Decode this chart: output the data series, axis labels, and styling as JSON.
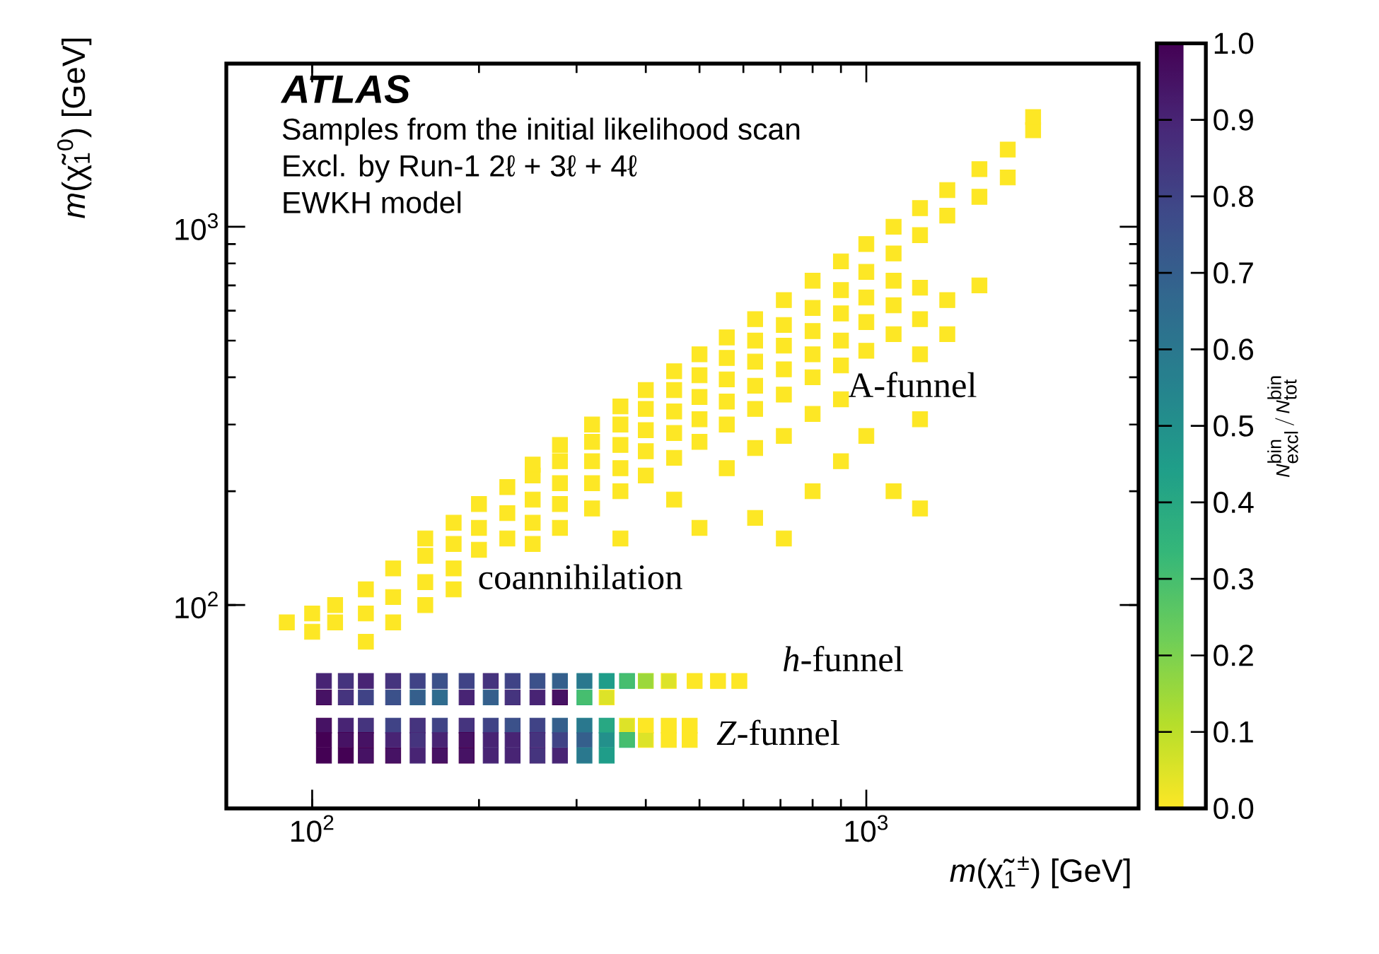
{
  "chart_data": {
    "type": "scatter",
    "xlabel": "*m*(χ̃$_{1}$$^{±}$) [GeV]",
    "ylabel": "*m*(χ̃$_{1}$$^{0}$) [GeV]",
    "clabel": "\\textit{N}^{\\textrm{bin}}_{\\textrm{excl}}\\,/\\,\\textit{N}^{\\textrm{bin}}_{\\textrm{tot}}",
    "annotations": [
      "ATLAS",
      "Samples from the initial likelihood scan",
      "Excl. by Run-1 2ℓ + 3ℓ + 4ℓ",
      "EWKH model",
      "A-funnel",
      "coannihilation",
      "*h*-funnel",
      "*Z*-funnel"
    ],
    "xlim": [
      70,
      3100
    ],
    "ylim": [
      29,
      2700
    ],
    "xticks": [
      {
        "value": 100,
        "label": "10$^{2}$"
      },
      {
        "value": 1000,
        "label": "10$^{3}$"
      }
    ],
    "yticks": [
      {
        "value": 100,
        "label": "10$^{2}$"
      },
      {
        "value": 1000,
        "label": "10$^{3}$"
      }
    ],
    "log": "xy",
    "marker": "square",
    "clim": [
      0,
      1
    ],
    "cticks": [
      {
        "value": 0,
        "label": "0.0"
      },
      {
        "value": 0.1,
        "label": "0.1"
      },
      {
        "value": 0.2,
        "label": "0.2"
      },
      {
        "value": 0.3,
        "label": "0.3"
      },
      {
        "value": 0.4,
        "label": "0.4"
      },
      {
        "value": 0.5,
        "label": "0.5"
      },
      {
        "value": 0.6,
        "label": "0.6"
      },
      {
        "value": 0.7,
        "label": "0.7"
      },
      {
        "value": 0.8,
        "label": "0.8"
      },
      {
        "value": 0.9,
        "label": "0.9"
      },
      {
        "value": 1,
        "label": "1.0"
      }
    ],
    "series": [
      {
        "x": [
          90,
          100,
          100,
          110,
          110,
          125,
          125,
          125,
          140,
          140,
          140,
          160,
          160,
          160,
          160,
          180,
          180,
          180,
          180,
          200,
          200,
          200,
          225,
          225,
          225,
          250,
          250,
          250,
          250,
          250,
          280,
          280,
          280,
          280,
          280,
          320,
          320,
          320,
          320,
          320,
          360,
          360,
          360,
          360,
          360,
          360,
          400,
          400,
          400,
          400,
          400,
          450,
          450,
          450,
          450,
          450,
          450,
          500,
          500,
          500,
          500,
          500,
          500,
          560,
          560,
          560,
          560,
          560,
          560,
          630,
          630,
          630,
          630,
          630,
          630,
          630,
          710,
          710,
          710,
          710,
          710,
          710,
          710,
          800,
          800,
          800,
          800,
          800,
          800,
          800,
          900,
          900,
          900,
          900,
          900,
          900,
          900,
          1000,
          1000,
          1000,
          1000,
          1000,
          1000,
          1120,
          1120,
          1120,
          1120,
          1120,
          1120,
          1250,
          1250,
          1250,
          1250,
          1250,
          1250,
          1250,
          1400,
          1400,
          1400,
          1400,
          1600,
          1600,
          1600,
          1800,
          1800,
          2000,
          2000
        ],
        "values": [
          90,
          85,
          95,
          90,
          100,
          80,
          95,
          110,
          90,
          105,
          125,
          100,
          115,
          135,
          150,
          110,
          125,
          145,
          165,
          140,
          160,
          185,
          150,
          175,
          205,
          145,
          165,
          190,
          220,
          235,
          160,
          185,
          210,
          240,
          265,
          180,
          210,
          240,
          270,
          300,
          150,
          200,
          230,
          265,
          300,
          335,
          220,
          255,
          290,
          330,
          370,
          190,
          245,
          285,
          325,
          370,
          415,
          160,
          270,
          310,
          355,
          405,
          460,
          230,
          300,
          345,
          395,
          450,
          510,
          170,
          260,
          330,
          380,
          440,
          500,
          570,
          150,
          280,
          360,
          420,
          485,
          550,
          640,
          200,
          320,
          400,
          460,
          530,
          610,
          720,
          240,
          350,
          430,
          500,
          590,
          680,
          810,
          280,
          470,
          560,
          650,
          760,
          900,
          200,
          520,
          620,
          720,
          850,
          1000,
          180,
          310,
          460,
          570,
          690,
          950,
          1120,
          520,
          640,
          1070,
          1250,
          700,
          1200,
          1420,
          1350,
          1600,
          1800,
          1950
        ],
        "cvalues": [
          0,
          0,
          0,
          0,
          0,
          0,
          0,
          0,
          0,
          0,
          0,
          0,
          0,
          0,
          0,
          0,
          0,
          0,
          0,
          0,
          0,
          0,
          0,
          0,
          0,
          0,
          0,
          0,
          0,
          0,
          0,
          0,
          0,
          0,
          0,
          0,
          0,
          0,
          0,
          0,
          0,
          0,
          0,
          0,
          0,
          0,
          0,
          0,
          0,
          0,
          0,
          0,
          0,
          0,
          0,
          0,
          0,
          0,
          0,
          0,
          0,
          0,
          0,
          0,
          0,
          0,
          0,
          0,
          0,
          0,
          0,
          0,
          0,
          0,
          0,
          0,
          0,
          0,
          0,
          0,
          0,
          0,
          0,
          0,
          0,
          0,
          0,
          0,
          0,
          0,
          0,
          0,
          0,
          0,
          0,
          0,
          0,
          0,
          0,
          0,
          0,
          0,
          0,
          0,
          0,
          0,
          0,
          0,
          0,
          0,
          0,
          0,
          0,
          0,
          0,
          0,
          0,
          0,
          0,
          0,
          0,
          0,
          0,
          0,
          0,
          0,
          0
        ]
      },
      {
        "x": [
          105,
          115,
          125,
          140,
          155,
          170,
          190,
          210,
          230,
          255,
          280,
          310,
          340,
          370,
          400,
          440,
          490,
          540,
          590
        ],
        "values": [
          63,
          63,
          63,
          63,
          63,
          63,
          63,
          63,
          63,
          63,
          63,
          63,
          63,
          63,
          63,
          63,
          63,
          63,
          63
        ],
        "cvalues": [
          0.9,
          0.85,
          0.9,
          0.85,
          0.8,
          0.75,
          0.8,
          0.85,
          0.8,
          0.75,
          0.7,
          0.6,
          0.45,
          0.3,
          0.15,
          0.05,
          0,
          0,
          0
        ],
        "colors": [
          "#482878",
          "#482878",
          "#482878",
          "#482878",
          "#3e4a89",
          "#3e4a89",
          "#3e4a89",
          "#482878",
          "#3e4a89",
          "#3e4a89",
          "#31688e",
          "#26828e",
          "#1f9e89",
          "#35b779",
          "#b5de2b",
          "#fde725",
          "#fde725",
          "#fde725",
          "#fde725"
        ]
      },
      {
        "x": [
          105,
          115,
          125,
          140,
          155,
          170,
          190,
          210,
          230,
          255,
          280,
          310,
          340
        ],
        "values": [
          57,
          57,
          57,
          57,
          57,
          57,
          57,
          57,
          57,
          57,
          57,
          57,
          57
        ],
        "cvalues": [
          0.95,
          0.85,
          0.8,
          0.75,
          0.7,
          0.65,
          0.9,
          0.7,
          0.85,
          0.9,
          0.95,
          0.3,
          0.05
        ],
        "colors": [
          "#440154",
          "#482878",
          "#3e4a89",
          "#3e4a89",
          "#31688e",
          "#31688e",
          "#482878",
          "#31688e",
          "#482878",
          "#482878",
          "#440154",
          "#35b779",
          "#fde725"
        ]
      },
      {
        "x": [
          105,
          115,
          125,
          140,
          155,
          170,
          190,
          210,
          230,
          255,
          280,
          310,
          340,
          370,
          400,
          440,
          480
        ],
        "values": [
          48,
          48,
          48,
          48,
          48,
          48,
          48,
          48,
          48,
          48,
          48,
          48,
          48,
          48,
          48,
          48,
          48
        ],
        "cvalues": [
          0.95,
          0.9,
          0.85,
          0.8,
          0.85,
          0.8,
          0.85,
          0.8,
          0.75,
          0.8,
          0.7,
          0.6,
          0.4,
          0.05,
          0,
          0,
          0
        ],
        "colors": [
          "#440154",
          "#482878",
          "#482878",
          "#3e4a89",
          "#482878",
          "#3e4a89",
          "#482878",
          "#3e4a89",
          "#3e4a89",
          "#3e4a89",
          "#31688e",
          "#26828e",
          "#1f9e89",
          "#fde725",
          "#fde725",
          "#fde725",
          "#fde725"
        ]
      },
      {
        "x": [
          105,
          115,
          125,
          140,
          155,
          170,
          190,
          210,
          230,
          255,
          280,
          310,
          340,
          370,
          400,
          440,
          480
        ],
        "values": [
          44,
          44,
          44,
          44,
          44,
          44,
          44,
          44,
          44,
          44,
          44,
          44,
          44,
          44,
          44,
          44,
          44
        ],
        "cvalues": [
          1.0,
          0.95,
          0.95,
          0.9,
          0.85,
          0.9,
          0.95,
          0.9,
          0.9,
          0.85,
          0.8,
          0.7,
          0.5,
          0.3,
          0.05,
          0,
          0
        ],
        "colors": [
          "#440154",
          "#440154",
          "#440154",
          "#482878",
          "#482878",
          "#482878",
          "#440154",
          "#482878",
          "#482878",
          "#482878",
          "#3e4a89",
          "#31688e",
          "#1f9e89",
          "#35b779",
          "#fde725",
          "#fde725",
          "#fde725"
        ]
      },
      {
        "x": [
          105,
          115,
          125,
          140,
          155,
          170,
          190,
          210,
          230,
          255,
          280,
          310,
          340
        ],
        "values": [
          40,
          40,
          40,
          40,
          40,
          40,
          40,
          40,
          40,
          40,
          40,
          40,
          40
        ],
        "cvalues": [
          1.0,
          1.0,
          0.95,
          0.95,
          0.9,
          0.95,
          0.95,
          0.9,
          0.9,
          0.85,
          0.9,
          0.6,
          0.45
        ],
        "colors": [
          "#440154",
          "#440154",
          "#440154",
          "#440154",
          "#482878",
          "#440154",
          "#440154",
          "#482878",
          "#482878",
          "#482878",
          "#482878",
          "#26828e",
          "#1f9e89"
        ]
      }
    ]
  }
}
